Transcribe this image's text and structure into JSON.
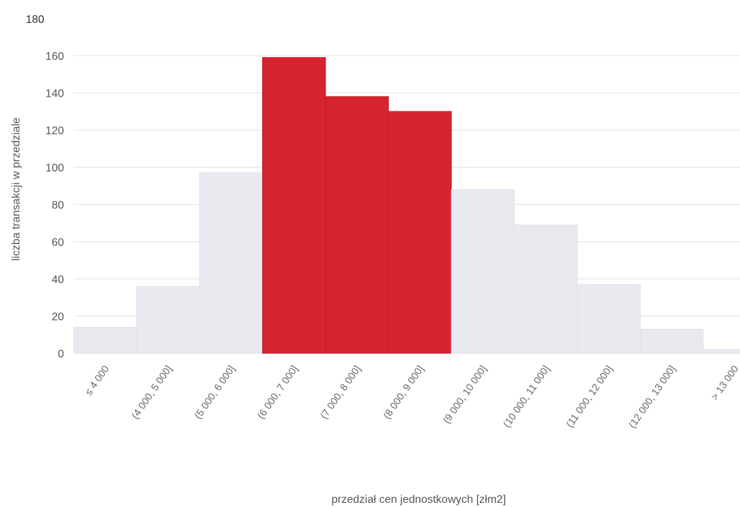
{
  "corner_label": "180",
  "chart_data": {
    "type": "bar",
    "categories": [
      "≤ 4 000",
      "(4 000, 5 000]",
      "(5 000, 6 000]",
      "(6 000, 7 000]",
      "(7 000, 8 000]",
      "(8 000, 9 000]",
      "(9 000, 10 000]",
      "(10 000, 11 000]",
      "(11 000, 12 000]",
      "(12 000, 13 000]",
      "> 13 000"
    ],
    "values": [
      14,
      36,
      97,
      159,
      138,
      130,
      88,
      69,
      37,
      13,
      2
    ],
    "highlighted": [
      false,
      false,
      false,
      true,
      true,
      true,
      false,
      false,
      false,
      false,
      false
    ],
    "title": "",
    "xlabel": "przedział cen jednostkowych [złm2]",
    "ylabel": "liczba transakcji w przedziale",
    "ylim": [
      0,
      160
    ],
    "yticks": [
      0,
      20,
      40,
      60,
      80,
      100,
      120,
      140,
      160
    ],
    "grid": true,
    "colors": {
      "default": "#e8eaef",
      "highlight": "#d5232f",
      "grid": "#e6e6e6"
    }
  }
}
